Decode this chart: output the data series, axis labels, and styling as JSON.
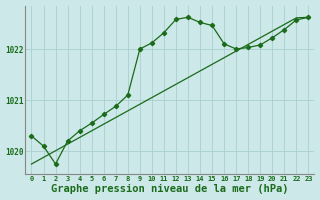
{
  "title": "Graphe pression niveau de la mer (hPa)",
  "background_color": "#cce8e8",
  "grid_color": "#aacfcf",
  "line_color": "#1a6b1a",
  "spine_color": "#888888",
  "y_main": [
    1020.3,
    1020.1,
    1019.75,
    1020.2,
    1020.4,
    1020.55,
    1020.72,
    1020.88,
    1021.1,
    1022.0,
    1022.12,
    1022.32,
    1022.58,
    1022.62,
    1022.52,
    1022.46,
    1022.1,
    1022.0,
    1022.03,
    1022.08,
    1022.22,
    1022.38,
    1022.57,
    1022.62
  ],
  "y_trend": [
    1019.75,
    1019.88,
    1020.01,
    1020.14,
    1020.27,
    1020.4,
    1020.53,
    1020.66,
    1020.79,
    1020.92,
    1021.05,
    1021.18,
    1021.31,
    1021.44,
    1021.57,
    1021.7,
    1021.83,
    1021.96,
    1022.09,
    1022.22,
    1022.35,
    1022.48,
    1022.61,
    1022.62
  ],
  "xlim": [
    -0.5,
    23.5
  ],
  "ylim": [
    1019.55,
    1022.85
  ],
  "yticks": [
    1020,
    1021,
    1022
  ],
  "title_fontsize": 7.5,
  "tick_fontsize": 5.5
}
